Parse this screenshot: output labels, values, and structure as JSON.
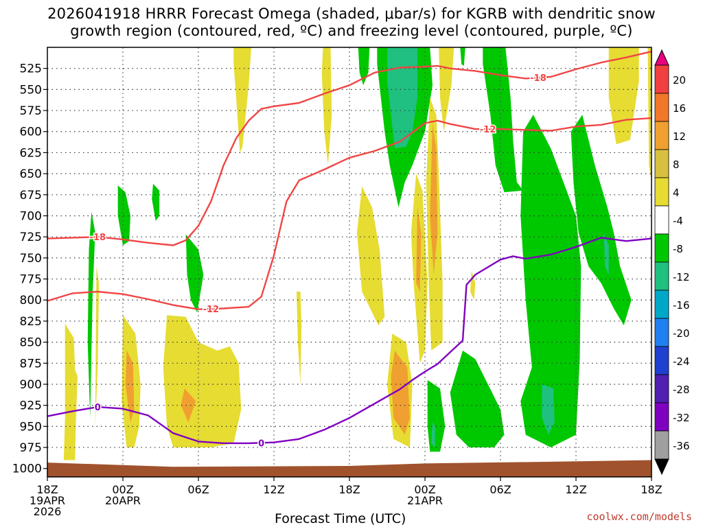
{
  "title_line1": "2026041918 HRRR Forecast Omega (shaded, μbar/s) for KGRB with dendritic snow",
  "title_line2": "growth region (contoured, red, ºC) and freezing level (contoured, purple, ºC)",
  "credit": "coolwx.com/models",
  "chart_data": {
    "type": "heatmap",
    "xlabel": "Forecast Time (UTC)",
    "x_ticks": [
      {
        "h": 0,
        "label": [
          "18Z",
          "19APR",
          "2026"
        ]
      },
      {
        "h": 6,
        "label": [
          "00Z",
          "20APR"
        ]
      },
      {
        "h": 12,
        "label": [
          "06Z"
        ]
      },
      {
        "h": 18,
        "label": [
          "12Z"
        ]
      },
      {
        "h": 24,
        "label": [
          "18Z"
        ]
      },
      {
        "h": 30,
        "label": [
          "00Z",
          "21APR"
        ]
      },
      {
        "h": 36,
        "label": [
          "06Z"
        ]
      },
      {
        "h": 42,
        "label": [
          "12Z"
        ]
      },
      {
        "h": 48,
        "label": [
          "18Z"
        ]
      }
    ],
    "y_ticks": [
      525,
      550,
      575,
      600,
      625,
      650,
      675,
      700,
      725,
      750,
      775,
      800,
      825,
      850,
      875,
      900,
      925,
      950,
      975,
      1000
    ],
    "y_range_hpa": [
      500,
      1010
    ],
    "x_range_h": [
      0,
      48
    ],
    "colorbar": {
      "levels": [
        "20",
        "16",
        "12",
        "8",
        "4",
        "-4",
        "-8",
        "-12",
        "-16",
        "-20",
        "-24",
        "-28",
        "-32",
        "-36"
      ],
      "colors": [
        "#e6007e",
        "#f04040",
        "#f07828",
        "#f0a030",
        "#d8c040",
        "#e6dc32",
        "#ffffff",
        "#00c800",
        "#20c080",
        "#00a8c8",
        "#2080f0",
        "#2040d0",
        "#5020b0",
        "#8000c0",
        "#a0a0a0",
        "#000000"
      ]
    },
    "series": [
      {
        "label": "-18",
        "color": "#f04545",
        "points": [
          [
            0,
            727
          ],
          [
            2,
            726
          ],
          [
            4,
            725
          ],
          [
            6,
            728
          ],
          [
            8,
            732
          ],
          [
            10,
            735
          ],
          [
            11,
            729
          ],
          [
            12,
            712
          ],
          [
            13,
            683
          ],
          [
            14,
            640
          ],
          [
            15,
            608
          ],
          [
            16,
            587
          ],
          [
            17,
            573
          ],
          [
            18,
            570
          ],
          [
            20,
            566
          ],
          [
            22,
            555
          ],
          [
            24,
            545
          ],
          [
            26,
            530
          ],
          [
            28,
            524
          ],
          [
            30,
            523
          ],
          [
            31,
            522
          ],
          [
            32,
            525
          ],
          [
            34,
            528
          ],
          [
            36,
            533
          ],
          [
            38,
            537
          ],
          [
            40,
            535
          ],
          [
            42,
            526
          ],
          [
            44,
            518
          ],
          [
            46,
            512
          ],
          [
            48,
            505
          ]
        ]
      },
      {
        "label": "-12",
        "color": "#f04545",
        "points": [
          [
            0,
            801
          ],
          [
            2,
            792
          ],
          [
            4,
            790
          ],
          [
            6,
            793
          ],
          [
            8,
            799
          ],
          [
            10,
            806
          ],
          [
            12,
            811
          ],
          [
            14,
            810
          ],
          [
            16,
            808
          ],
          [
            17,
            796
          ],
          [
            18,
            747
          ],
          [
            19,
            683
          ],
          [
            20,
            658
          ],
          [
            22,
            645
          ],
          [
            24,
            631
          ],
          [
            26,
            623
          ],
          [
            28,
            612
          ],
          [
            30,
            590
          ],
          [
            31,
            587
          ],
          [
            32,
            591
          ],
          [
            34,
            597
          ],
          [
            36,
            597
          ],
          [
            38,
            598
          ],
          [
            40,
            599
          ],
          [
            42,
            594
          ],
          [
            44,
            592
          ],
          [
            46,
            586
          ],
          [
            48,
            584
          ]
        ]
      },
      {
        "label": "0",
        "color": "#8000c0",
        "points": [
          [
            0,
            938
          ],
          [
            2,
            932
          ],
          [
            4,
            927
          ],
          [
            6,
            929
          ],
          [
            8,
            937
          ],
          [
            10,
            958
          ],
          [
            12,
            968
          ],
          [
            14,
            970
          ],
          [
            16,
            970
          ],
          [
            18,
            969
          ],
          [
            20,
            965
          ],
          [
            22,
            954
          ],
          [
            24,
            940
          ],
          [
            26,
            923
          ],
          [
            28,
            906
          ],
          [
            29,
            895
          ],
          [
            30,
            885
          ],
          [
            31,
            876
          ],
          [
            32,
            862
          ],
          [
            33,
            848
          ],
          [
            33.3,
            782
          ],
          [
            34,
            770
          ],
          [
            36,
            752
          ],
          [
            37,
            748
          ],
          [
            38,
            751
          ],
          [
            40,
            746
          ],
          [
            42,
            737
          ],
          [
            44,
            726
          ],
          [
            46,
            730
          ],
          [
            48,
            727
          ]
        ]
      }
    ]
  }
}
